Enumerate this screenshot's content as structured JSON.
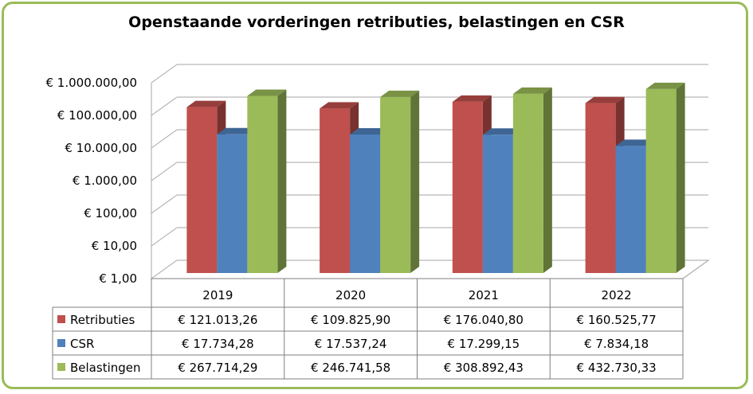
{
  "chart_data": {
    "type": "bar",
    "title": "Openstaande vorderingen retributies, belastingen en CSR",
    "categories": [
      "2019",
      "2020",
      "2021",
      "2022"
    ],
    "y_scale": "log",
    "ylim": [
      1,
      1000000
    ],
    "y_ticks": [
      "€ 1,00",
      "€ 10,00",
      "€ 100,00",
      "€ 1.000,00",
      "€ 10.000,00",
      "€ 100.000,00",
      "€ 1.000.000,00"
    ],
    "grid": true,
    "legend": "data-table",
    "series": [
      {
        "name": "Retributies",
        "color": "#c0504d",
        "values": [
          121013.26,
          109825.9,
          176040.8,
          160525.77
        ],
        "labels": [
          "€ 121.013,26",
          "€ 109.825,90",
          "€ 176.040,80",
          "€ 160.525,77"
        ]
      },
      {
        "name": "CSR",
        "color": "#4f81bd",
        "values": [
          17734.28,
          17537.24,
          17299.15,
          7834.18
        ],
        "labels": [
          "€ 17.734,28",
          "€ 17.537,24",
          "€ 17.299,15",
          "€ 7.834,18"
        ]
      },
      {
        "name": "Belastingen",
        "color": "#9bbb59",
        "values": [
          267714.29,
          246741.58,
          308892.43,
          432730.33
        ],
        "labels": [
          "€ 267.714,29",
          "€ 246.741,58",
          "€ 308.892,43",
          "€ 432.730,33"
        ]
      }
    ]
  }
}
